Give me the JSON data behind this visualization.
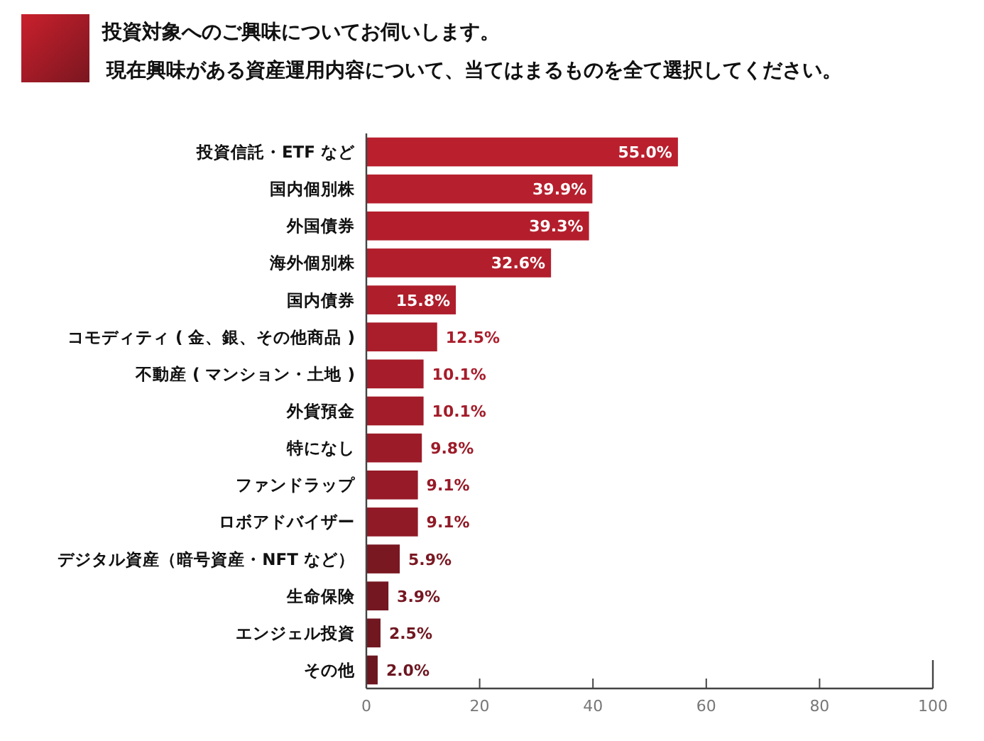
{
  "chart_data": {
    "type": "bar",
    "orientation": "horizontal",
    "title": "投資対象へのご興味についてお伺いします。",
    "subtitle": "現在興味がある資産運用内容について、当てはまるものを全て選択してください。",
    "categories": [
      "投資信託・ETF など",
      "国内個別株",
      "外国債券",
      "海外個別株",
      "国内債券",
      "コモディティ ( 金、銀、その他商品 )",
      "不動産 ( マンション・土地 )",
      "外貨預金",
      "特になし",
      "ファンドラップ",
      "ロボアドバイザー",
      "デジタル資産（暗号資産・NFT など）",
      "生命保険",
      "エンジェル投資",
      "その他"
    ],
    "values": [
      55.0,
      39.9,
      39.3,
      32.6,
      15.8,
      12.5,
      10.1,
      10.1,
      9.8,
      9.1,
      9.1,
      5.9,
      3.9,
      2.5,
      2.0
    ],
    "value_labels": [
      "55.0%",
      "39.9%",
      "39.3%",
      "32.6%",
      "15.8%",
      "12.5%",
      "10.1%",
      "10.1%",
      "9.8%",
      "9.1%",
      "9.1%",
      "5.9%",
      "3.9%",
      "2.5%",
      "2.0%"
    ],
    "colors": [
      "#b91f2d",
      "#b61f2d",
      "#b41e2c",
      "#b21e2c",
      "#ae1e2b",
      "#aa1d2b",
      "#a61c2a",
      "#a21c29",
      "#9c1b28",
      "#961a27",
      "#901a26",
      "#7a1822",
      "#741721",
      "#701720",
      "#6c1620"
    ],
    "xlim": [
      0,
      100
    ],
    "xticks": [
      0,
      20,
      40,
      60,
      80,
      100
    ],
    "grid": false
  }
}
